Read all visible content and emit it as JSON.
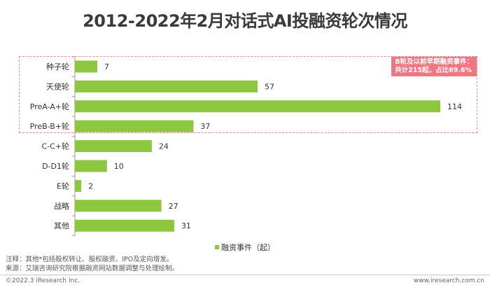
{
  "chart_data": {
    "type": "bar",
    "orientation": "horizontal",
    "title": "2012-2022年2月对话式AI投融资轮次情况",
    "categories": [
      "种子轮",
      "天使轮",
      "PreA-A+轮",
      "PreB-B+轮",
      "C-C+轮",
      "D-D1轮",
      "E轮",
      "战略",
      "其他"
    ],
    "series": [
      {
        "name": "融资事件（起）",
        "values": [
          7,
          57,
          114,
          37,
          24,
          10,
          2,
          27,
          31
        ]
      }
    ],
    "xlim": [
      0,
      120
    ],
    "grid": false,
    "legend_position": "bottom-center",
    "bar_color": "#8dc63f",
    "highlight": {
      "categories": [
        "种子轮",
        "天使轮",
        "PreA-A+轮",
        "PreB-B+轮"
      ],
      "line1": "B轮及以前早期融资事件：",
      "line2": "共计215起，占比69.6%",
      "color": "#f07682"
    }
  },
  "notes": {
    "note": "注释：其他*包括股权转让、股权融资、IPO及定向增发。",
    "source": "来源：艾瑞咨询研究院根据融资网站数据调整与处理绘制。"
  },
  "footer": {
    "copyright": "©2022.3 iResearch Inc.",
    "website": "www.iresearch.com.cn"
  }
}
